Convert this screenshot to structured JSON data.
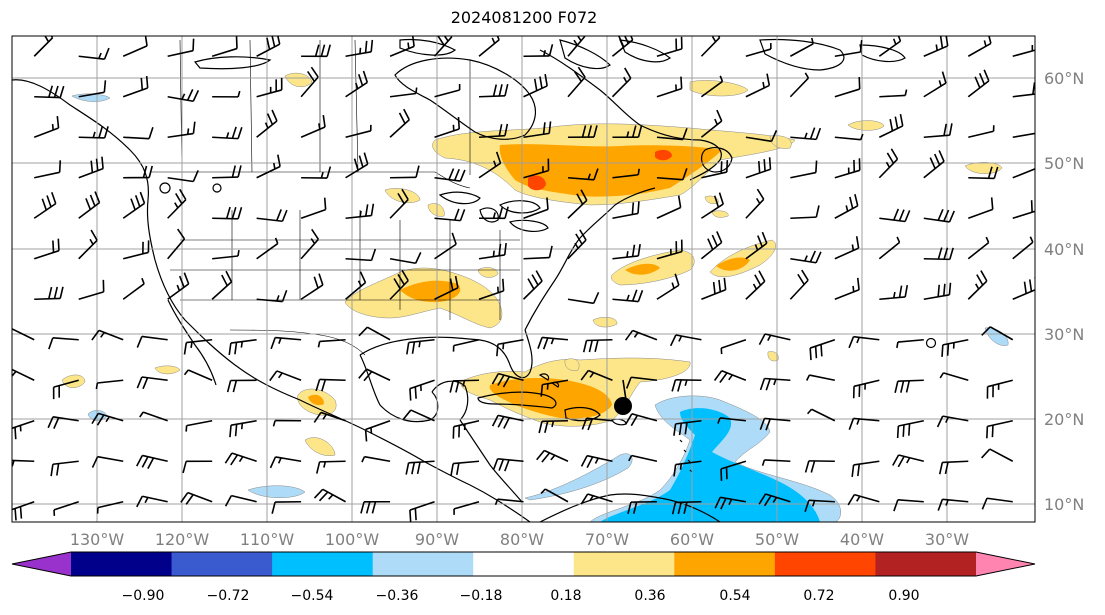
{
  "title": "2024081200 F072",
  "map": {
    "lat_labels": [
      "60°N",
      "50°N",
      "40°N",
      "30°N",
      "20°N",
      "10°N"
    ],
    "lat_values": [
      60,
      50,
      40,
      30,
      20,
      10
    ],
    "lon_labels": [
      "130°W",
      "120°W",
      "110°W",
      "100°W",
      "90°W",
      "80°W",
      "70°W",
      "60°W",
      "50°W",
      "40°W",
      "30°W"
    ],
    "lon_values": [
      -130,
      -120,
      -110,
      -100,
      -90,
      -80,
      -70,
      -60,
      -50,
      -40,
      -30
    ],
    "extent": {
      "lon_min": -141,
      "lon_max": -20,
      "lat_min": 8,
      "lat_max": 65
    },
    "storm_marker": {
      "lon": -69.5,
      "lat": 21.5
    },
    "contour_colors": {
      "light_yellow": "#fde68a",
      "orange": "#ffa500",
      "red_orange": "#ff4500",
      "light_blue": "#aedcf8",
      "blue": "#00bfff"
    }
  },
  "colorbar": {
    "ticks": [
      "−0.90",
      "−0.72",
      "−0.54",
      "−0.36",
      "−0.18",
      "0.18",
      "0.36",
      "0.54",
      "0.72",
      "0.90"
    ],
    "colors": [
      "#9932cc",
      "#00008b",
      "#3a5bd0",
      "#00bfff",
      "#aedcf8",
      "#ffffff",
      "#fde68a",
      "#ffa500",
      "#ff4500",
      "#b22222",
      "#ff85b0"
    ],
    "extend_low_color": "#9932cc",
    "extend_high_color": "#ff85b0"
  }
}
